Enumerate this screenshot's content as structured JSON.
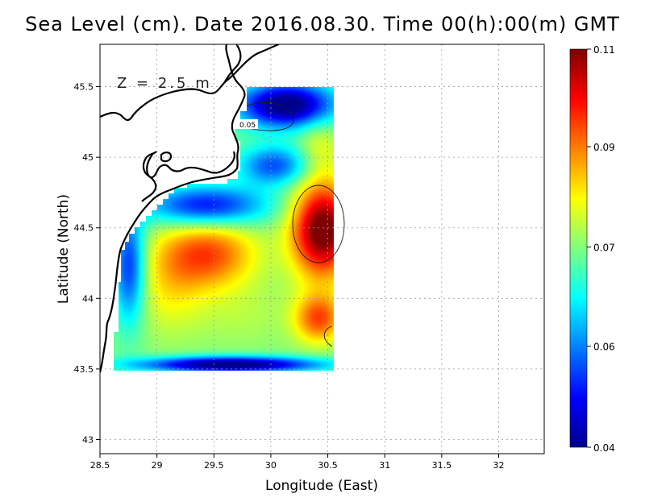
{
  "title": "Sea Level (cm). Date 2016.08.30. Time 00(h):00(m) GMT",
  "depth_label": "Z = 2.5 m",
  "contour_label": "0.05",
  "x_axis": {
    "label": "Longitude (East)",
    "range": [
      28.5,
      32.4
    ],
    "ticks": [
      {
        "v": 28.5,
        "label": "28.5"
      },
      {
        "v": 29,
        "label": "29"
      },
      {
        "v": 29.5,
        "label": "29.5"
      },
      {
        "v": 30,
        "label": "30"
      },
      {
        "v": 30.5,
        "label": "30.5"
      },
      {
        "v": 31,
        "label": "31"
      },
      {
        "v": 31.5,
        "label": "31.5"
      },
      {
        "v": 32,
        "label": "32"
      }
    ]
  },
  "y_axis": {
    "label": "Latitude (North)",
    "range": [
      42.9,
      45.8
    ],
    "ticks": [
      {
        "v": 43,
        "label": "43"
      },
      {
        "v": 43.5,
        "label": "43.5"
      },
      {
        "v": 44,
        "label": "44"
      },
      {
        "v": 44.5,
        "label": "44.5"
      },
      {
        "v": 45,
        "label": "45"
      },
      {
        "v": 45.5,
        "label": "45.5"
      }
    ]
  },
  "colorbar": {
    "range": [
      0.04,
      0.11
    ],
    "ticks": [
      {
        "v": 0.11,
        "label": "0.11"
      },
      {
        "v": 0.09,
        "label": "0.09"
      },
      {
        "v": 0.07,
        "label": "0.07"
      },
      {
        "v": 0.06,
        "label": "0.06"
      },
      {
        "v": 0.04,
        "label": "0.04"
      }
    ],
    "colors": [
      "#00008f",
      "#0000ff",
      "#007fff",
      "#00ffff",
      "#7fff7f",
      "#ffff00",
      "#ff7f00",
      "#ff0000",
      "#7f0000"
    ]
  },
  "grid": "dotted",
  "field_domain": {
    "lon": [
      28.62,
      30.55
    ],
    "lat": [
      43.49,
      45.5
    ]
  }
}
